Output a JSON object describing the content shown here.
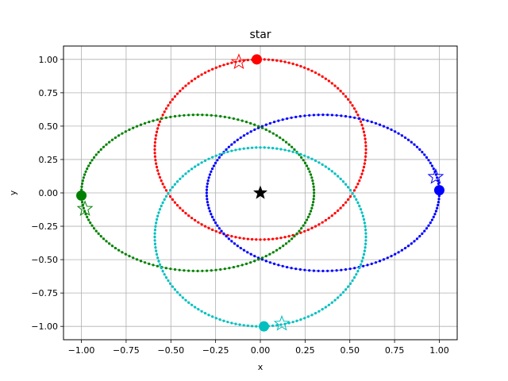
{
  "chart_data": {
    "type": "scatter",
    "title": "star",
    "xlabel": "x",
    "ylabel": "y",
    "xlim": [
      -1.1,
      1.1
    ],
    "ylim": [
      -1.1,
      1.1
    ],
    "xticks": [
      -1.0,
      -0.75,
      -0.5,
      -0.25,
      0.0,
      0.25,
      0.5,
      0.75,
      1.0
    ],
    "yticks": [
      -1.0,
      -0.75,
      -0.5,
      -0.25,
      0.0,
      0.25,
      0.5,
      0.75,
      1.0
    ],
    "xtick_labels": [
      "−1.00",
      "−0.75",
      "−0.50",
      "−0.25",
      "0.00",
      "0.25",
      "0.50",
      "0.75",
      "1.00"
    ],
    "ytick_labels": [
      "−1.00",
      "−0.75",
      "−0.50",
      "−0.25",
      "0.00",
      "0.25",
      "0.50",
      "0.75",
      "1.00"
    ],
    "grid": true,
    "central_star": {
      "x": 0.0,
      "y": 0.0,
      "color": "#000000"
    },
    "series": [
      {
        "color": "#ff0000",
        "center": [
          0.0,
          0.325
        ],
        "semi_axes": [
          0.59,
          0.675
        ],
        "body": {
          "x": -0.02,
          "y": 1.0
        },
        "star": {
          "x": -0.12,
          "y": 0.98
        }
      },
      {
        "color": "#0000ff",
        "center": [
          0.35,
          0.0
        ],
        "semi_axes": [
          0.65,
          0.585
        ],
        "body": {
          "x": 1.0,
          "y": 0.02
        },
        "star": {
          "x": 0.98,
          "y": 0.12
        }
      },
      {
        "color": "#008000",
        "center": [
          -0.35,
          0.0
        ],
        "semi_axes": [
          0.65,
          0.585
        ],
        "body": {
          "x": -1.0,
          "y": -0.02
        },
        "star": {
          "x": -0.98,
          "y": -0.12
        }
      },
      {
        "color": "#00bfbf",
        "center": [
          0.0,
          -0.33
        ],
        "semi_axes": [
          0.59,
          0.67
        ],
        "body": {
          "x": 0.02,
          "y": -1.0
        },
        "star": {
          "x": 0.12,
          "y": -0.98
        }
      }
    ]
  }
}
